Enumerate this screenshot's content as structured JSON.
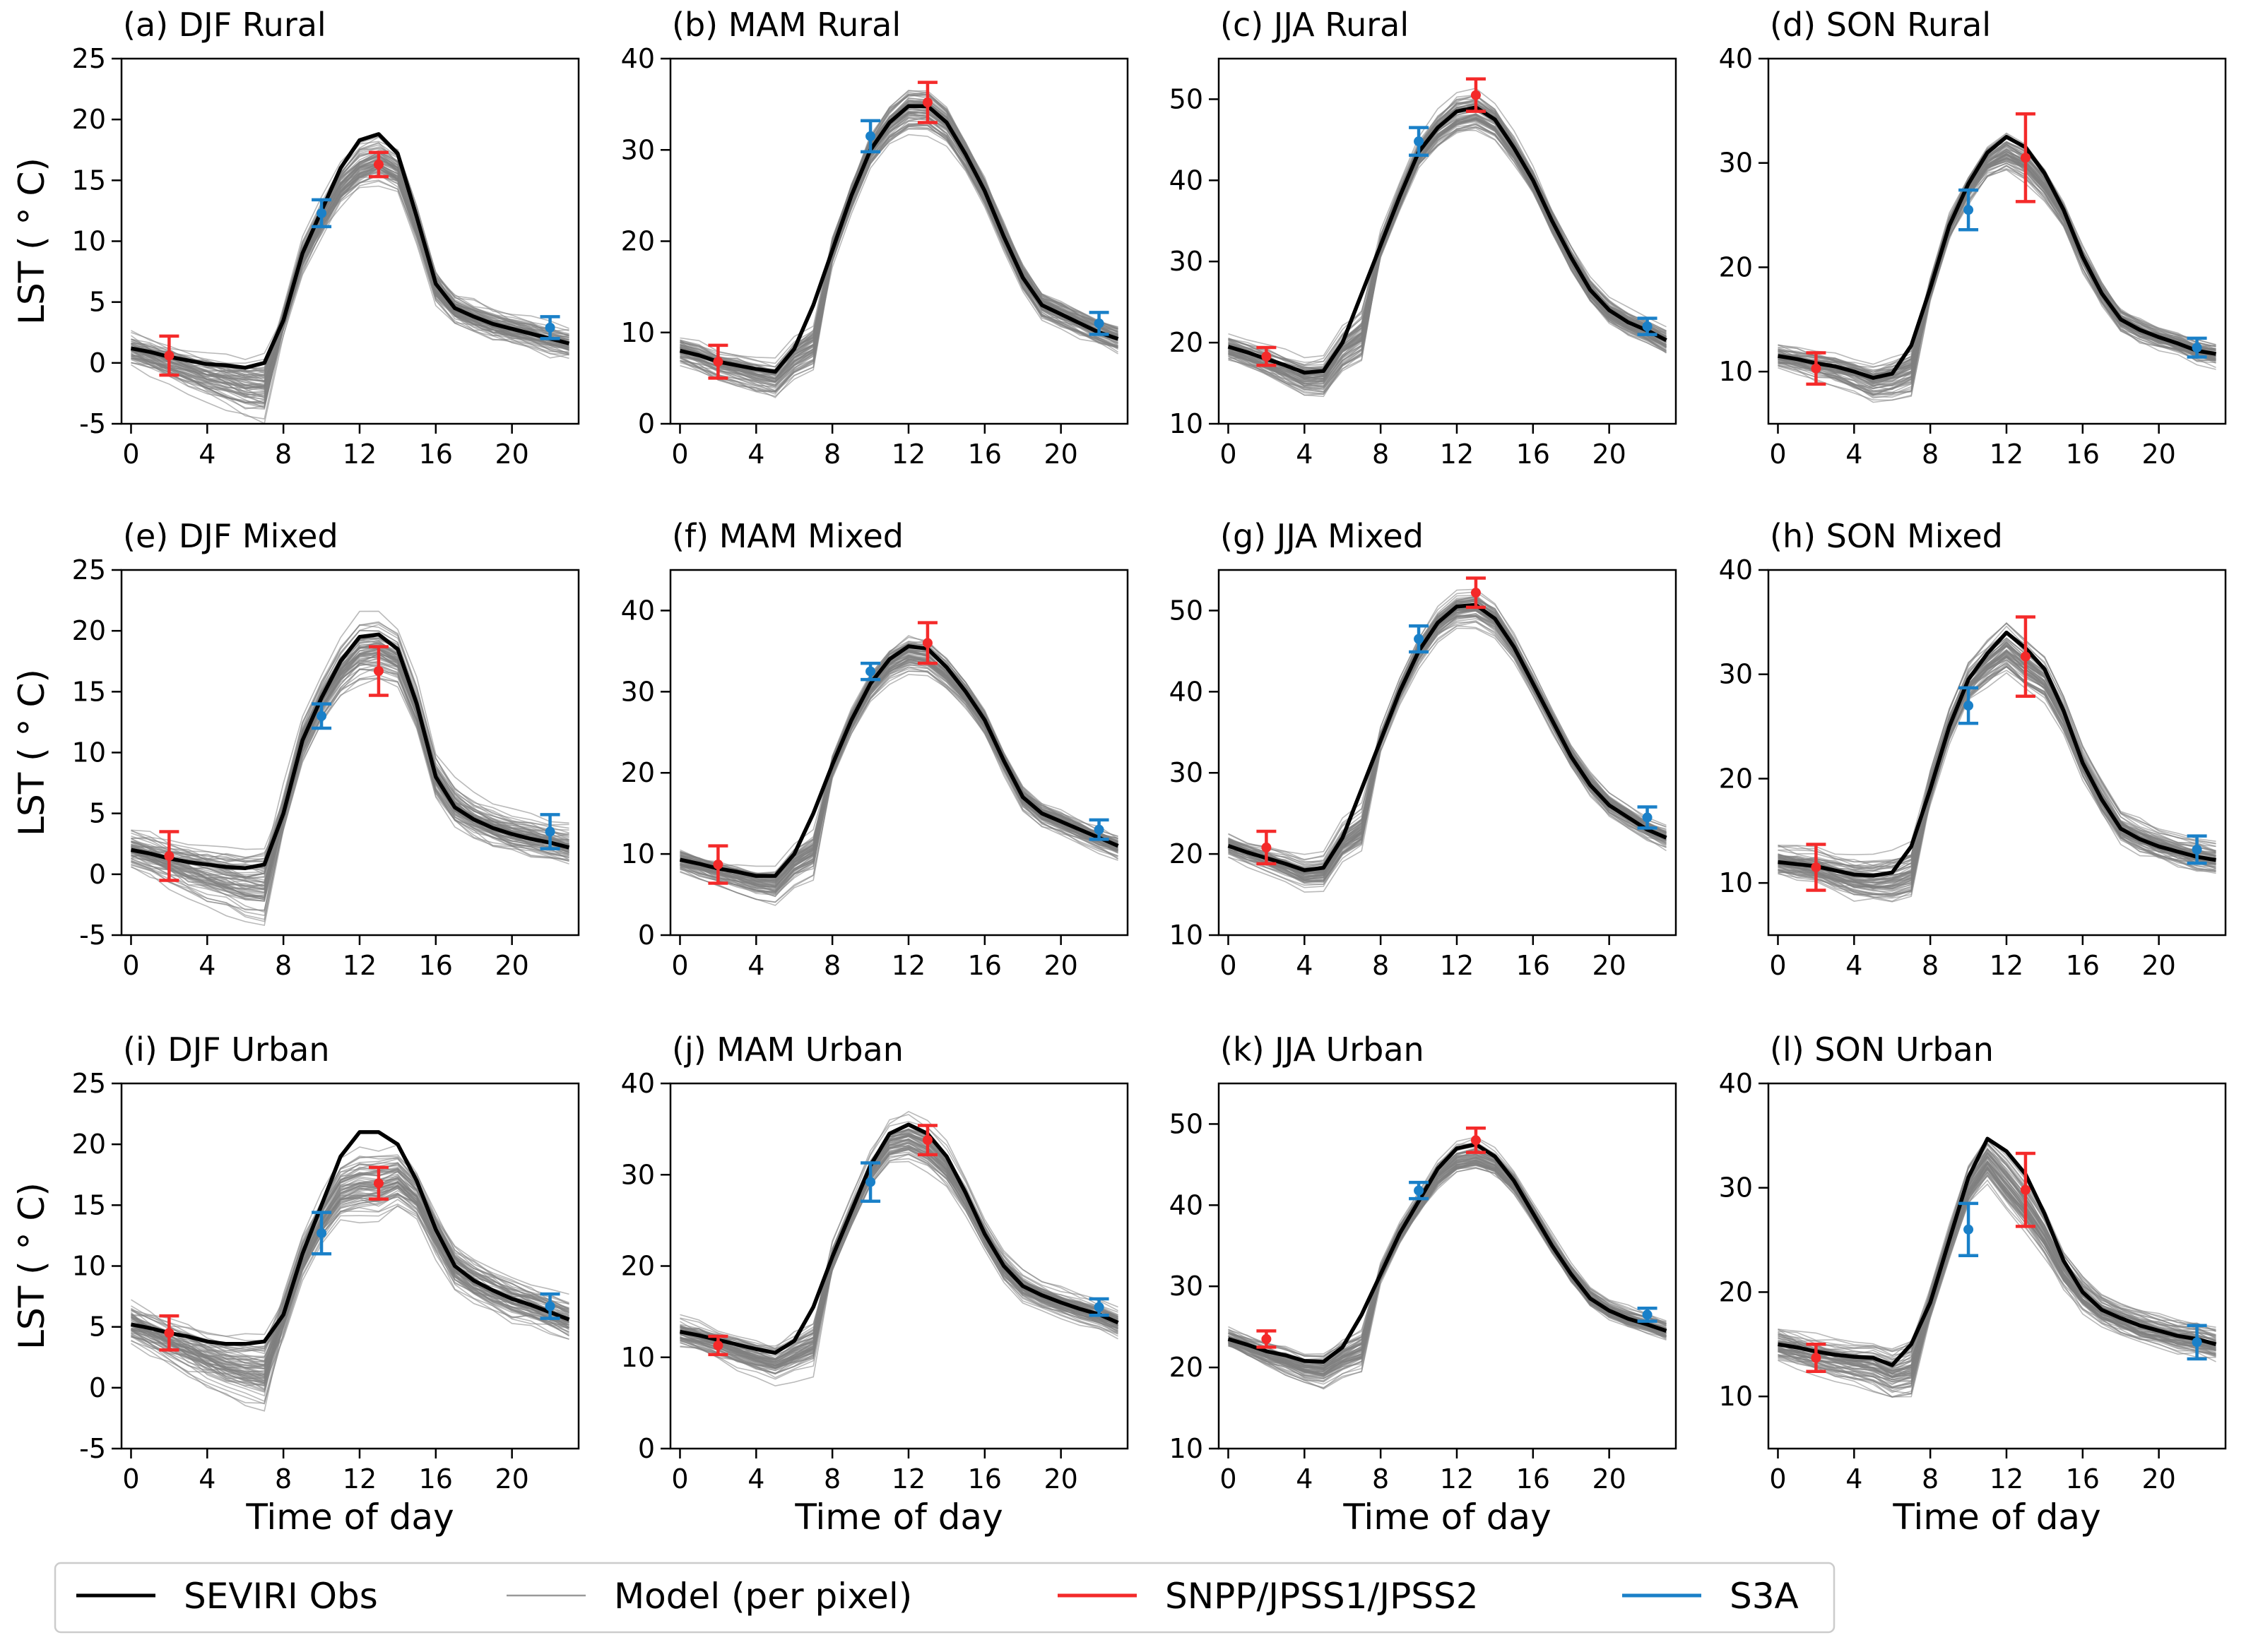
{
  "chart_data": {
    "type": "line",
    "xlabel": "Time of day",
    "ylabel": "LST ($^\\circ$C)",
    "ylabel_display": "LST ( ° C)",
    "xlim": [
      -0.5,
      23.5
    ],
    "xticks": [
      "0",
      "4",
      "8",
      "12",
      "16",
      "20"
    ],
    "x": [
      0,
      1,
      2,
      3,
      4,
      5,
      6,
      7,
      8,
      9,
      10,
      11,
      12,
      13,
      14,
      15,
      16,
      17,
      18,
      19,
      20,
      21,
      22,
      23
    ],
    "colors": {
      "obs": "#000000",
      "model": "#808080",
      "snpp": "#f42a2a",
      "s3a": "#1a80c8"
    },
    "legend": {
      "placement": "bottom",
      "items": [
        {
          "label": "SEVIRI Obs",
          "key": "obs"
        },
        {
          "label": "Model (per pixel)",
          "key": "model"
        },
        {
          "label": "SNPP/JPSS1/JPSS2",
          "key": "snpp"
        },
        {
          "label": "S3A",
          "key": "s3a"
        }
      ]
    },
    "panels": [
      {
        "title": "(a) DJF Rural",
        "ylim": [
          -5,
          25
        ],
        "yticks": [
          "-5",
          "0",
          "5",
          "10",
          "15",
          "20",
          "25"
        ],
        "obs": [
          1.2,
          0.9,
          0.5,
          0.2,
          -0.1,
          -0.2,
          -0.4,
          0,
          3.5,
          9,
          12.5,
          16,
          18.3,
          18.8,
          17.2,
          12,
          6.5,
          4.5,
          3.8,
          3.2,
          2.8,
          2.4,
          2,
          1.6
        ],
        "model": {
          "night_bias": -1.5,
          "peak_bias": -2.2,
          "spread": 1.4
        },
        "snpp": [
          {
            "x": 2,
            "y": 0.6,
            "err": 1.6
          },
          {
            "x": 13,
            "y": 16.3,
            "err": 1.0
          }
        ],
        "s3a": [
          {
            "x": 10,
            "y": 12.3,
            "err": 1.1
          },
          {
            "x": 22,
            "y": 2.9,
            "err": 0.9
          }
        ]
      },
      {
        "title": "(b) MAM Rural",
        "ylim": [
          0,
          40
        ],
        "yticks": [
          "0",
          "10",
          "20",
          "30",
          "40"
        ],
        "obs": [
          8,
          7.5,
          6.8,
          6.4,
          6,
          5.7,
          8.2,
          13,
          19,
          25,
          30,
          33,
          34.8,
          34.8,
          33,
          29.5,
          25.5,
          20.5,
          16,
          13,
          12,
          11,
          10,
          9.3
        ],
        "model": {
          "night_bias": -1.0,
          "peak_bias": -0.5,
          "spread": 1.5
        },
        "snpp": [
          {
            "x": 2,
            "y": 6.8,
            "err": 1.8
          },
          {
            "x": 13,
            "y": 35.2,
            "err": 2.2
          }
        ],
        "s3a": [
          {
            "x": 10,
            "y": 31.5,
            "err": 1.7
          },
          {
            "x": 22,
            "y": 11,
            "err": 1.2
          }
        ]
      },
      {
        "title": "(c) JJA Rural",
        "ylim": [
          10,
          55
        ],
        "yticks": [
          "10",
          "20",
          "30",
          "40",
          "50"
        ],
        "obs": [
          19.5,
          18.8,
          18,
          17.2,
          16.3,
          16.5,
          20,
          26,
          32,
          38,
          43.5,
          46.5,
          48.5,
          49,
          47.5,
          44,
          40,
          35,
          30.5,
          26.5,
          24,
          22.5,
          21.5,
          20.3
        ],
        "model": {
          "night_bias": -0.5,
          "peak_bias": -0.3,
          "spread": 1.8
        },
        "snpp": [
          {
            "x": 2,
            "y": 18.3,
            "err": 1.1
          },
          {
            "x": 13,
            "y": 50.5,
            "err": 2.0
          }
        ],
        "s3a": [
          {
            "x": 10,
            "y": 44.8,
            "err": 1.7
          },
          {
            "x": 22,
            "y": 22,
            "err": 1.0
          }
        ]
      },
      {
        "title": "(d) SON Rural",
        "ylim": [
          5,
          40
        ],
        "yticks": [
          "10",
          "20",
          "30",
          "40"
        ],
        "obs": [
          11.5,
          11.2,
          10.8,
          10.5,
          10,
          9.4,
          9.8,
          12.5,
          18,
          24,
          28,
          31,
          32.5,
          31.5,
          29,
          25.5,
          21,
          17.5,
          15,
          14,
          13.3,
          12.7,
          12,
          11.7
        ],
        "model": {
          "night_bias": -0.5,
          "peak_bias": -1.5,
          "spread": 1.3
        },
        "snpp": [
          {
            "x": 2,
            "y": 10.3,
            "err": 1.5
          },
          {
            "x": 13,
            "y": 30.5,
            "err": 4.2
          }
        ],
        "s3a": [
          {
            "x": 10,
            "y": 25.5,
            "err": 1.9
          },
          {
            "x": 22,
            "y": 12.3,
            "err": 0.9
          }
        ]
      },
      {
        "title": "(e) DJF Mixed",
        "ylim": [
          -5,
          25
        ],
        "yticks": [
          "-5",
          "0",
          "5",
          "10",
          "15",
          "20",
          "25"
        ],
        "obs": [
          2,
          1.7,
          1.3,
          1,
          0.8,
          0.6,
          0.5,
          0.8,
          5,
          11,
          14.5,
          17.5,
          19.5,
          19.7,
          18.5,
          14,
          8,
          5.5,
          4.5,
          3.8,
          3.3,
          2.9,
          2.6,
          2.2
        ],
        "model": {
          "night_bias": -1.5,
          "peak_bias": -1.5,
          "spread": 1.8
        },
        "snpp": [
          {
            "x": 2,
            "y": 1.5,
            "err": 2.0
          },
          {
            "x": 13,
            "y": 16.7,
            "err": 2.0
          }
        ],
        "s3a": [
          {
            "x": 10,
            "y": 13,
            "err": 1.0
          },
          {
            "x": 22,
            "y": 3.5,
            "err": 1.4
          }
        ]
      },
      {
        "title": "(f) MAM Mixed",
        "ylim": [
          0,
          45
        ],
        "yticks": [
          "0",
          "10",
          "20",
          "30",
          "40"
        ],
        "obs": [
          9.3,
          8.8,
          8.2,
          7.8,
          7.3,
          7.3,
          10,
          15,
          21,
          26.5,
          31,
          34,
          35.6,
          35.3,
          33,
          30,
          26.5,
          21.5,
          17,
          15,
          14,
          13,
          12,
          11
        ],
        "model": {
          "night_bias": -1.0,
          "peak_bias": -0.8,
          "spread": 1.6
        },
        "snpp": [
          {
            "x": 2,
            "y": 8.7,
            "err": 2.3
          },
          {
            "x": 13,
            "y": 36,
            "err": 2.5
          }
        ],
        "s3a": [
          {
            "x": 10,
            "y": 32.5,
            "err": 1.0
          },
          {
            "x": 22,
            "y": 13,
            "err": 1.2
          }
        ]
      },
      {
        "title": "(g) JJA Mixed",
        "ylim": [
          10,
          55
        ],
        "yticks": [
          "10",
          "20",
          "30",
          "40",
          "50"
        ],
        "obs": [
          21,
          20.2,
          19.5,
          18.8,
          18,
          18.3,
          22,
          28,
          34,
          40,
          45,
          48.5,
          50.5,
          50.7,
          49,
          45.5,
          41,
          36.5,
          32,
          28.5,
          26,
          24.5,
          23,
          22
        ],
        "model": {
          "night_bias": -0.8,
          "peak_bias": -0.5,
          "spread": 1.6
        },
        "snpp": [
          {
            "x": 2,
            "y": 20.8,
            "err": 2.0
          },
          {
            "x": 13,
            "y": 52.2,
            "err": 1.8
          }
        ],
        "s3a": [
          {
            "x": 10,
            "y": 46.5,
            "err": 1.6
          },
          {
            "x": 22,
            "y": 24.5,
            "err": 1.3
          }
        ]
      },
      {
        "title": "(h) SON Mixed",
        "ylim": [
          5,
          40
        ],
        "yticks": [
          "10",
          "20",
          "30",
          "40"
        ],
        "obs": [
          12,
          11.8,
          11.6,
          11.2,
          10.8,
          10.7,
          11,
          13.5,
          19,
          25,
          29.5,
          32,
          34,
          32.5,
          30.5,
          26.5,
          21.5,
          18,
          15.2,
          14.2,
          13.5,
          13,
          12.5,
          12.2
        ],
        "model": {
          "night_bias": -0.8,
          "peak_bias": -2.0,
          "spread": 1.5
        },
        "snpp": [
          {
            "x": 2,
            "y": 11.5,
            "err": 2.2
          },
          {
            "x": 13,
            "y": 31.7,
            "err": 3.8
          }
        ],
        "s3a": [
          {
            "x": 10,
            "y": 27,
            "err": 1.7
          },
          {
            "x": 22,
            "y": 13.2,
            "err": 1.3
          }
        ]
      },
      {
        "title": "(i) DJF Urban",
        "ylim": [
          -5,
          25
        ],
        "yticks": [
          "-5",
          "0",
          "5",
          "10",
          "15",
          "20",
          "25"
        ],
        "obs": [
          5.2,
          4.9,
          4.5,
          4.2,
          3.8,
          3.6,
          3.6,
          3.8,
          6,
          11,
          15,
          19,
          21,
          21,
          20,
          17,
          13,
          10,
          8.8,
          8,
          7.3,
          6.8,
          6.2,
          5.6
        ],
        "model": {
          "night_bias": -2.5,
          "peak_bias": -4.5,
          "spread": 2.0
        },
        "snpp": [
          {
            "x": 2,
            "y": 4.5,
            "err": 1.4
          },
          {
            "x": 13,
            "y": 16.8,
            "err": 1.3
          }
        ],
        "s3a": [
          {
            "x": 10,
            "y": 12.7,
            "err": 1.7
          },
          {
            "x": 22,
            "y": 6.7,
            "err": 1.0
          }
        ]
      },
      {
        "title": "(j) MAM Urban",
        "ylim": [
          0,
          40
        ],
        "yticks": [
          "0",
          "10",
          "20",
          "30",
          "40"
        ],
        "obs": [
          12.8,
          12.4,
          11.9,
          11.4,
          10.9,
          10.5,
          11.8,
          15.5,
          21,
          26,
          31,
          34.5,
          35.5,
          34.5,
          32,
          28,
          23.5,
          20,
          17.8,
          16.8,
          16,
          15.3,
          14.7,
          13.8
        ],
        "model": {
          "night_bias": -1.5,
          "peak_bias": -1.5,
          "spread": 1.5
        },
        "snpp": [
          {
            "x": 2,
            "y": 11.3,
            "err": 1.0
          },
          {
            "x": 13,
            "y": 33.8,
            "err": 1.6
          }
        ],
        "s3a": [
          {
            "x": 10,
            "y": 29.2,
            "err": 2.1
          },
          {
            "x": 22,
            "y": 15.5,
            "err": 0.9
          }
        ]
      },
      {
        "title": "(k) JJA Urban",
        "ylim": [
          10,
          55
        ],
        "yticks": [
          "10",
          "20",
          "30",
          "40",
          "50"
        ],
        "obs": [
          23.5,
          22.8,
          22,
          21.5,
          20.8,
          20.7,
          22.5,
          26.5,
          31.5,
          36.5,
          40.5,
          44.5,
          47,
          47.5,
          46,
          43,
          39,
          35,
          31.5,
          28.5,
          27,
          26,
          25.3,
          24.5
        ],
        "model": {
          "night_bias": -1.5,
          "peak_bias": -1.5,
          "spread": 1.5
        },
        "snpp": [
          {
            "x": 2,
            "y": 23.5,
            "err": 1.0
          },
          {
            "x": 13,
            "y": 48,
            "err": 1.5
          }
        ],
        "s3a": [
          {
            "x": 10,
            "y": 41.8,
            "err": 1.0
          },
          {
            "x": 22,
            "y": 26.5,
            "err": 0.8
          }
        ]
      },
      {
        "title": "(l) SON Urban",
        "ylim": [
          5,
          40
        ],
        "yticks": [
          "10",
          "20",
          "30",
          "40"
        ],
        "obs": [
          15,
          14.7,
          14.3,
          14,
          13.8,
          13.7,
          13,
          15,
          19,
          25,
          31,
          34.7,
          33.5,
          31.3,
          27.5,
          23,
          20,
          18.3,
          17.5,
          16.8,
          16.3,
          15.8,
          15.5,
          15
        ],
        "model": {
          "night_bias": -1.0,
          "peak_bias": -3.0,
          "spread": 1.6
        },
        "snpp": [
          {
            "x": 2,
            "y": 13.7,
            "err": 1.3
          },
          {
            "x": 13,
            "y": 29.8,
            "err": 3.5
          }
        ],
        "s3a": [
          {
            "x": 10,
            "y": 26,
            "err": 2.5
          },
          {
            "x": 22,
            "y": 15.2,
            "err": 1.6
          }
        ]
      }
    ]
  }
}
